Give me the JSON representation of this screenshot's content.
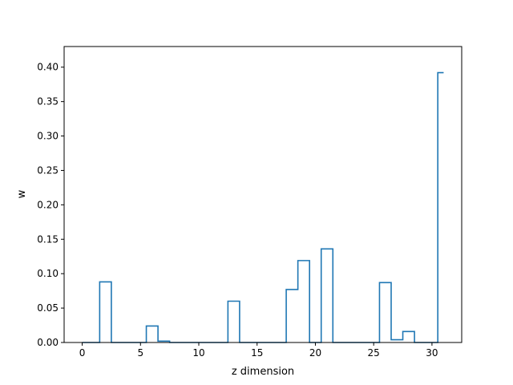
{
  "chart_data": {
    "type": "line",
    "drawstyle": "steps-mid",
    "xlabel": "z dimension",
    "ylabel": "w",
    "xlim": [
      -1.55,
      32.55
    ],
    "ylim": [
      0,
      0.43
    ],
    "grid": false,
    "legend": "none",
    "x_ticks": [
      0,
      5,
      10,
      15,
      20,
      25,
      30
    ],
    "x_tick_labels": [
      "0",
      "5",
      "10",
      "15",
      "20",
      "25",
      "30"
    ],
    "y_ticks": [
      0,
      0.05,
      0.1,
      0.15,
      0.2,
      0.25,
      0.3,
      0.35,
      0.4
    ],
    "y_tick_labels": [
      "0.00",
      "0.05",
      "0.10",
      "0.15",
      "0.20",
      "0.25",
      "0.30",
      "0.35",
      "0.40"
    ],
    "series": [
      {
        "color": "#1f77b4",
        "x": [
          0,
          1,
          2,
          3,
          4,
          5,
          6,
          7,
          8,
          9,
          10,
          11,
          12,
          13,
          14,
          15,
          16,
          17,
          18,
          19,
          20,
          21,
          22,
          23,
          24,
          25,
          26,
          27,
          28,
          29,
          30,
          31
        ],
        "values": [
          0,
          0,
          0.088,
          0,
          0,
          0,
          0.024,
          0.002,
          0,
          0,
          0,
          0,
          0,
          0.06,
          0,
          0,
          0,
          0,
          0.077,
          0.119,
          0,
          0.136,
          0,
          0,
          0,
          0,
          0.087,
          0.004,
          0.016,
          0,
          0,
          0.392
        ]
      }
    ]
  }
}
